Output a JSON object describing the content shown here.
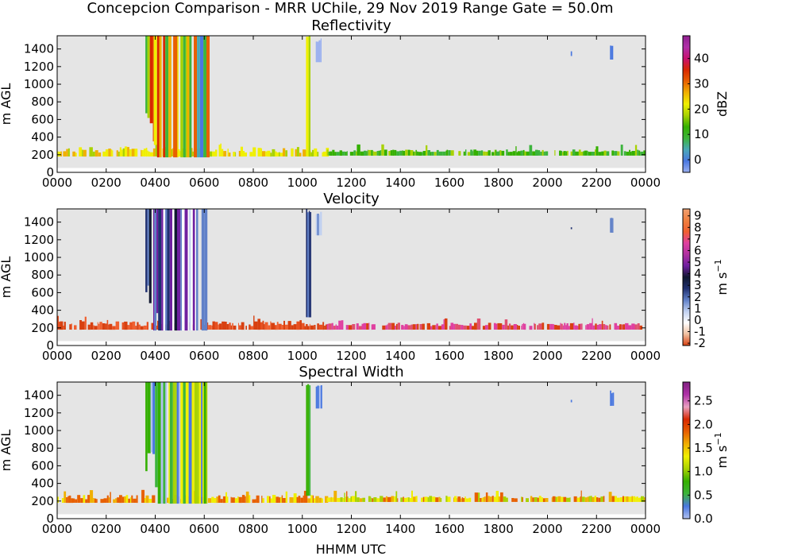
{
  "figure": {
    "suptitle": "Concepcion Comparison - MRR UChile, 29 Nov 2019 Range Gate = 50.0m",
    "xlabel": "HHMM UTC"
  },
  "chart_data": [
    {
      "type": "heatmap",
      "title": "Reflectivity",
      "ylabel": "m AGL",
      "colorbar_label": "dBZ",
      "xlim": [
        0,
        2400
      ],
      "ylim": [
        0,
        1550
      ],
      "x_ticks": [
        "0000",
        "0200",
        "0400",
        "0600",
        "0800",
        "1000",
        "1200",
        "1400",
        "1600",
        "1800",
        "2000",
        "2200",
        "0000"
      ],
      "y_ticks": [
        0,
        200,
        400,
        600,
        800,
        1000,
        1200,
        1400
      ],
      "colorbar_range": [
        -5,
        49
      ],
      "colorbar_ticks": [
        "0",
        "10",
        "20",
        "30",
        "40"
      ],
      "colorbar_tick_values": [
        0,
        10,
        20,
        30,
        40
      ],
      "colorbar_stops": [
        "#9ab0f0",
        "#4a78e0",
        "#4aa8b8",
        "#3cb43c",
        "#34b000",
        "#a8d200",
        "#f0f000",
        "#f0b000",
        "#e86000",
        "#d82800",
        "#c81070",
        "#b030a8",
        "#902090"
      ],
      "echoes": [
        {
          "t_start": 360,
          "t_end": 610,
          "h_bottom": 170,
          "h_top": 1550,
          "colors": [
            "#f0f000",
            "#3cb43c",
            "#4a78e0",
            "#f0b000",
            "#e86000",
            "#d82800",
            "#a8d200",
            "#4aa8b8"
          ]
        },
        {
          "t_start": 1015,
          "t_end": 1030,
          "h_bottom": 180,
          "h_top": 1550,
          "colors": [
            "#3cb43c",
            "#a8d200",
            "#f0f000"
          ]
        },
        {
          "t_start": 1055,
          "t_end": 1075,
          "h_bottom": 1250,
          "h_top": 1520,
          "colors": [
            "#4a78e0",
            "#9ab0f0"
          ]
        },
        {
          "t_start": 2255,
          "t_end": 2265,
          "h_bottom": 1280,
          "h_top": 1460,
          "colors": [
            "#4a78e0"
          ]
        },
        {
          "t_start": 2095,
          "t_end": 2100,
          "h_bottom": 1320,
          "h_top": 1380,
          "colors": [
            "#4a78e0"
          ]
        }
      ],
      "surface_layer": [
        {
          "t_start": 0,
          "t_end": 1100,
          "h_bottom": 180,
          "h_top": 280,
          "colors": [
            "#f0f000",
            "#f0f000",
            "#a8d200",
            "#f0b000"
          ]
        },
        {
          "t_start": 1100,
          "t_end": 2400,
          "h_bottom": 190,
          "h_top": 260,
          "colors": [
            "#34b000",
            "#3cb43c",
            "#a8d200",
            "#34b000"
          ]
        }
      ]
    },
    {
      "type": "heatmap",
      "title": "Velocity",
      "ylabel": "m s⁻¹ axis: m AGL",
      "ylabel_display": "m AGL",
      "colorbar_label": "m s",
      "colorbar_label_sup": "−1",
      "xlim": [
        0,
        2400
      ],
      "ylim": [
        0,
        1550
      ],
      "x_ticks": [
        "0000",
        "0200",
        "0400",
        "0600",
        "0800",
        "1000",
        "1200",
        "1400",
        "1600",
        "1800",
        "2000",
        "2200",
        "0000"
      ],
      "y_ticks": [
        0,
        200,
        400,
        600,
        800,
        1000,
        1200,
        1400
      ],
      "colorbar_range": [
        -2.2,
        9.6
      ],
      "colorbar_ticks": [
        "-2",
        "-1",
        "0",
        "1",
        "2",
        "3",
        "4",
        "5",
        "6",
        "7",
        "8",
        "9"
      ],
      "colorbar_tick_values": [
        -2,
        -1,
        0,
        1,
        2,
        3,
        4,
        5,
        6,
        7,
        8,
        9
      ],
      "colorbar_stops": [
        "#d84010",
        "#f0c0a0",
        "#ffffff",
        "#c0d0f0",
        "#6080c8",
        "#203070",
        "#101830",
        "#7020a0",
        "#b030a0",
        "#e040a0",
        "#f06030",
        "#f08040",
        "#f0a070"
      ],
      "echoes": [
        {
          "t_start": 360,
          "t_end": 610,
          "h_bottom": 170,
          "h_top": 1550,
          "colors": [
            "#c0d0f0",
            "#6080c8",
            "#203070",
            "#ffffff",
            "#101830",
            "#7020a0"
          ]
        },
        {
          "t_start": 1015,
          "t_end": 1035,
          "h_bottom": 320,
          "h_top": 1550,
          "colors": [
            "#203070",
            "#6080c8"
          ]
        },
        {
          "t_start": 1055,
          "t_end": 1075,
          "h_bottom": 1250,
          "h_top": 1520,
          "colors": [
            "#6080c8",
            "#c0d0f0"
          ]
        },
        {
          "t_start": 2255,
          "t_end": 2265,
          "h_bottom": 1280,
          "h_top": 1460,
          "colors": [
            "#6080c8"
          ]
        },
        {
          "t_start": 2095,
          "t_end": 2100,
          "h_bottom": 1320,
          "h_top": 1380,
          "colors": [
            "#203070"
          ]
        }
      ],
      "surface_layer": [
        {
          "t_start": 0,
          "t_end": 1100,
          "h_bottom": 180,
          "h_top": 280,
          "colors": [
            "#d84010",
            "#e85020",
            "#d84010",
            "#f06030"
          ]
        },
        {
          "t_start": 1100,
          "t_end": 2400,
          "h_bottom": 180,
          "h_top": 260,
          "colors": [
            "#e040a0",
            "#e05070",
            "#d84010",
            "#e040a0"
          ]
        }
      ]
    },
    {
      "type": "heatmap",
      "title": "Spectral Width",
      "ylabel": "m AGL",
      "colorbar_label": "m s",
      "colorbar_label_sup": "−1",
      "xlim": [
        0,
        2400
      ],
      "ylim": [
        0,
        1550
      ],
      "x_ticks": [
        "0000",
        "0200",
        "0400",
        "0600",
        "0800",
        "1000",
        "1200",
        "1400",
        "1600",
        "1800",
        "2000",
        "2200",
        "0000"
      ],
      "y_ticks": [
        0,
        200,
        400,
        600,
        800,
        1000,
        1200,
        1400
      ],
      "colorbar_range": [
        0,
        2.9
      ],
      "colorbar_ticks": [
        "0.0",
        "0.5",
        "1.0",
        "1.5",
        "2.0",
        "2.5"
      ],
      "colorbar_tick_values": [
        0,
        0.5,
        1.0,
        1.5,
        2.0,
        2.5
      ],
      "colorbar_stops": [
        "#b0c0f0",
        "#4a78e0",
        "#3cb43c",
        "#34b000",
        "#a8d200",
        "#f0f000",
        "#f0b000",
        "#e86000",
        "#d82800",
        "#e8a0c0",
        "#b030a8",
        "#802080"
      ],
      "echoes": [
        {
          "t_start": 360,
          "t_end": 610,
          "h_bottom": 170,
          "h_top": 1550,
          "colors": [
            "#3cb43c",
            "#4a78e0",
            "#a8d200",
            "#34b000",
            "#b0c0f0",
            "#f0f000"
          ]
        },
        {
          "t_start": 1015,
          "t_end": 1030,
          "h_bottom": 260,
          "h_top": 1550,
          "colors": [
            "#34b000",
            "#3cb43c"
          ]
        },
        {
          "t_start": 1055,
          "t_end": 1075,
          "h_bottom": 1250,
          "h_top": 1520,
          "colors": [
            "#4a78e0",
            "#b0c0f0"
          ]
        },
        {
          "t_start": 2255,
          "t_end": 2265,
          "h_bottom": 1280,
          "h_top": 1460,
          "colors": [
            "#4a78e0"
          ]
        },
        {
          "t_start": 2095,
          "t_end": 2100,
          "h_bottom": 1320,
          "h_top": 1380,
          "colors": [
            "#4a78e0"
          ]
        }
      ],
      "surface_layer": [
        {
          "t_start": 0,
          "t_end": 1100,
          "h_bottom": 180,
          "h_top": 270,
          "colors": [
            "#f0b000",
            "#e86000",
            "#f0f000",
            "#e86000"
          ]
        },
        {
          "t_start": 1100,
          "t_end": 2400,
          "h_bottom": 190,
          "h_top": 260,
          "colors": [
            "#e86000",
            "#f0f000",
            "#a8d200",
            "#f0b000"
          ]
        }
      ]
    }
  ]
}
